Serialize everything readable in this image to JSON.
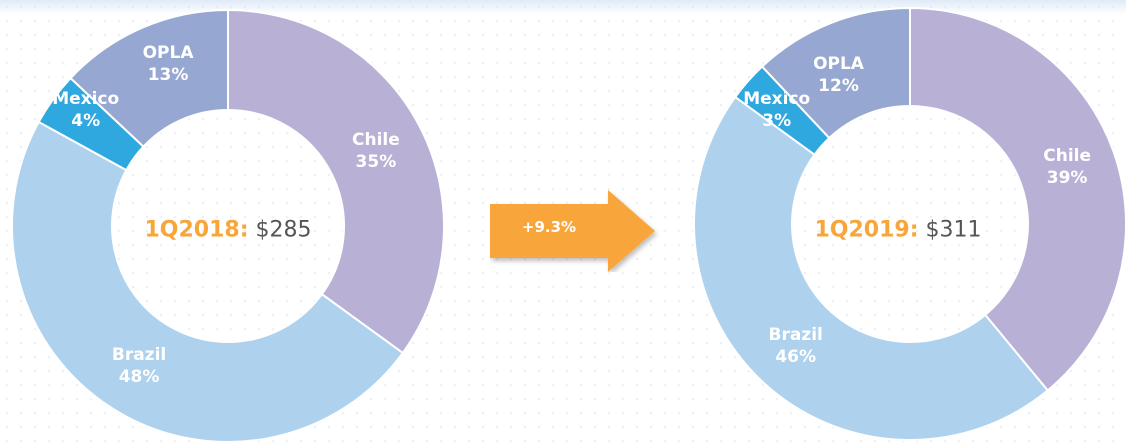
{
  "colors": {
    "chile": "#b9b0d6",
    "brazil": "#aed1ee",
    "mexico": "#2fa8e0",
    "opla": "#96a7d1",
    "highlight": "#f8a63a",
    "value_text": "#555555",
    "arrow": "#f8a63a"
  },
  "growth": {
    "label": "+9.3%"
  },
  "chart_data": [
    {
      "type": "pie",
      "center_period": "1Q2018:",
      "center_value": "$285",
      "slices": [
        {
          "name": "Chile",
          "value": 35,
          "label": "35%",
          "color": "#b9b0d6"
        },
        {
          "name": "Brazil",
          "value": 48,
          "label": "48%",
          "color": "#aed1ee"
        },
        {
          "name": "Mexico",
          "value": 4,
          "label": "4%",
          "color": "#2fa8e0"
        },
        {
          "name": "OPLA",
          "value": 13,
          "label": "13%",
          "color": "#96a7d1"
        }
      ]
    },
    {
      "type": "pie",
      "center_period": "1Q2019:",
      "center_value": "$311",
      "slices": [
        {
          "name": "Chile",
          "value": 39,
          "label": "39%",
          "color": "#b9b0d6"
        },
        {
          "name": "Brazil",
          "value": 46,
          "label": "46%",
          "color": "#aed1ee"
        },
        {
          "name": "Mexico",
          "value": 3,
          "label": "3%",
          "color": "#2fa8e0"
        },
        {
          "name": "OPLA",
          "value": 12,
          "label": "12%",
          "color": "#96a7d1"
        }
      ]
    }
  ]
}
